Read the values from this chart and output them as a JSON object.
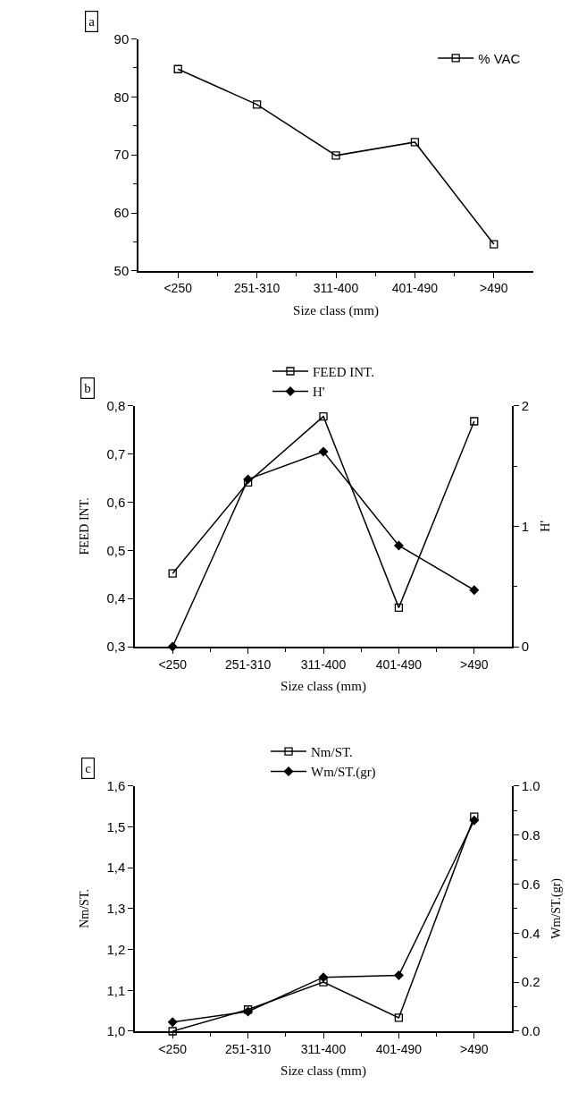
{
  "chart_data": [
    {
      "type": "line",
      "title": "a",
      "xlabel": "Size class (mm)",
      "categories": [
        "<250",
        "251-310",
        "311-400",
        "401-490",
        ">490"
      ],
      "series": [
        {
          "name": "% VAC",
          "color": "#000000",
          "marker": "square-open",
          "values": [
            84.8,
            78.7,
            69.9,
            72.2,
            54.6
          ]
        }
      ],
      "ylim": [
        50,
        90
      ],
      "yticks": [
        50,
        60,
        70,
        80,
        90,
        {
          "value": 55,
          "label": null
        },
        {
          "value": 65,
          "label": null
        },
        {
          "value": 75,
          "label": null
        },
        {
          "value": 85,
          "label": null
        }
      ],
      "legend": "top right",
      "grid": false,
      "line_style": "solid"
    },
    {
      "type": "line",
      "title": "b",
      "xlabel": "Size class (mm)",
      "ylabel": "FEED INT.",
      "y2label": "H'",
      "categories": [
        "<250",
        "251-310",
        "311-400",
        "401-490",
        ">490"
      ],
      "series": [
        {
          "name": "FEED INT.",
          "color": "#000000",
          "marker": "square-open",
          "values": [
            0.452,
            0.641,
            0.778,
            0.381,
            0.768
          ]
        },
        {
          "name": "H'",
          "color": "#000000",
          "marker": "diamond",
          "axis": "y2",
          "values": [
            0,
            1.39,
            1.62,
            0.84,
            0.47
          ]
        }
      ],
      "ylim": [
        0.3,
        0.8
      ],
      "yticks": [
        {
          "value": 0.3,
          "label": "0,3"
        },
        {
          "value": 0.4,
          "label": "0,4"
        },
        {
          "value": 0.5,
          "label": "0,5"
        },
        {
          "value": 0.6,
          "label": "0,6"
        },
        {
          "value": 0.7,
          "label": "0,7"
        },
        {
          "value": 0.8,
          "label": "0,8"
        }
      ],
      "y2lim": [
        0,
        2
      ],
      "y2ticks": [
        0,
        1,
        2,
        {
          "value": 0.5,
          "label": null
        },
        {
          "value": 1.5,
          "label": null
        }
      ],
      "legend": "top",
      "grid": false,
      "line_style": "solid"
    },
    {
      "type": "line",
      "title": "c",
      "xlabel": "Size class (mm)",
      "ylabel": "Nm/ST.",
      "y2label": "Wm/ST.(gr)",
      "categories": [
        "<250",
        "251-310",
        "311-400",
        "401-490",
        ">490"
      ],
      "series": [
        {
          "name": "Nm/ST.",
          "color": "#000000",
          "marker": "square-open",
          "values": [
            1.0,
            1.053,
            1.12,
            1.033,
            1.525
          ]
        },
        {
          "name": "Wm/ST.(gr)",
          "color": "#000000",
          "marker": "diamond",
          "axis": "y2",
          "values": [
            0.037,
            0.08,
            0.22,
            0.228,
            0.86
          ]
        }
      ],
      "ylim": [
        1.0,
        1.6
      ],
      "yticks": [
        {
          "value": 1.0,
          "label": "1,0"
        },
        {
          "value": 1.1,
          "label": "1,1"
        },
        {
          "value": 1.2,
          "label": "1,2"
        },
        {
          "value": 1.3,
          "label": "1,3"
        },
        {
          "value": 1.4,
          "label": "1,4"
        },
        {
          "value": 1.5,
          "label": "1,5"
        },
        {
          "value": 1.6,
          "label": "1,6"
        }
      ],
      "y2lim": [
        0,
        1
      ],
      "y2ticks": [
        {
          "value": 0,
          "label": "0.0"
        },
        {
          "value": 0.2,
          "label": "0.2"
        },
        {
          "value": 0.4,
          "label": "0.4"
        },
        {
          "value": 0.6,
          "label": "0.6"
        },
        {
          "value": 0.8,
          "label": "0.8"
        },
        {
          "value": 1,
          "label": "1.0"
        },
        {
          "value": 0.1,
          "label": null
        },
        {
          "value": 0.3,
          "label": null
        },
        {
          "value": 0.5,
          "label": null
        },
        {
          "value": 0.7,
          "label": null
        },
        {
          "value": 0.9,
          "label": null
        }
      ],
      "legend": "top",
      "grid": false,
      "line_style": "solid"
    }
  ]
}
